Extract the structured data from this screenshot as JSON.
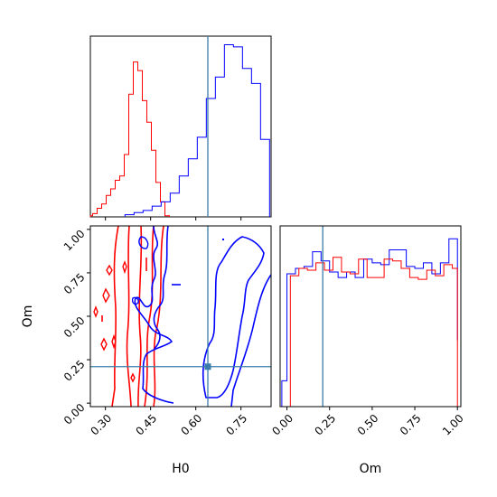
{
  "chart_data": [
    {
      "panel": "hist-H0",
      "type": "step-histogram",
      "xlim": [
        0.25,
        0.85
      ],
      "truth": 0.64,
      "series": [
        {
          "color": "#ff0000",
          "bin_centers": [
            0.25,
            0.265,
            0.28,
            0.295,
            0.31,
            0.325,
            0.34,
            0.355,
            0.37,
            0.385,
            0.4,
            0.415,
            0.43,
            0.445,
            0.46,
            0.475,
            0.49,
            0.505
          ],
          "values": [
            0.5,
            1.5,
            4,
            6,
            10,
            13,
            17,
            19,
            29,
            57,
            72,
            68,
            54,
            44,
            31,
            16,
            7,
            0.5
          ]
        },
        {
          "color": "#0000ff",
          "bin_centers": [
            0.38,
            0.41,
            0.44,
            0.47,
            0.5,
            0.53,
            0.56,
            0.59,
            0.62,
            0.65,
            0.68,
            0.71,
            0.74,
            0.77,
            0.8,
            0.83
          ],
          "values": [
            1,
            2,
            3,
            5,
            7,
            11,
            19,
            27,
            37,
            55,
            65,
            80,
            79,
            69,
            62,
            36
          ]
        }
      ],
      "ticks": [
        0.3,
        0.45,
        0.6,
        0.75
      ]
    },
    {
      "panel": "contour-H0-Om",
      "type": "contour",
      "xlim": [
        0.25,
        0.85
      ],
      "ylim": [
        -0.02,
        1.02
      ],
      "truth": {
        "x": 0.64,
        "y": 0.21
      },
      "series": [
        {
          "color": "#ff0000",
          "name": ""
        },
        {
          "color": "#0000ff",
          "name": ""
        }
      ],
      "xlabel": "H0",
      "ylabel": "Om",
      "xticks": [
        "0.30",
        "0.45",
        "0.60",
        "0.75"
      ],
      "xtick_values": [
        0.3,
        0.45,
        0.6,
        0.75
      ],
      "yticks": [
        "0.00",
        "0.25",
        "0.50",
        "0.75",
        "1.00"
      ],
      "ytick_values": [
        0.0,
        0.25,
        0.5,
        0.75,
        1.0
      ]
    },
    {
      "panel": "hist-Om",
      "type": "step-histogram",
      "xlim": [
        -0.04,
        1.02
      ],
      "truth": 0.21,
      "series": [
        {
          "color": "#0000ff",
          "bin_edges": [
            -0.03,
            0.0,
            0.05,
            0.1,
            0.15,
            0.2,
            0.25,
            0.3,
            0.35,
            0.4,
            0.45,
            0.5,
            0.55,
            0.6,
            0.65,
            0.7,
            0.75,
            0.8,
            0.85,
            0.9,
            0.95,
            1.0
          ],
          "values": [
            14,
            72,
            75,
            76,
            84,
            79,
            73,
            70,
            73,
            70,
            80,
            78,
            77,
            85,
            85,
            76,
            75,
            78,
            72,
            78,
            91,
            36
          ]
        },
        {
          "color": "#ff0000",
          "bin_edges": [
            0.0,
            0.02,
            0.07,
            0.12,
            0.17,
            0.22,
            0.27,
            0.32,
            0.37,
            0.42,
            0.47,
            0.52,
            0.57,
            0.62,
            0.67,
            0.72,
            0.77,
            0.82,
            0.87,
            0.92,
            0.97,
            1.0
          ],
          "values": [
            0,
            71,
            75,
            74,
            78,
            74,
            81,
            73,
            72,
            80,
            70,
            70,
            80,
            79,
            75,
            70,
            69,
            74,
            71,
            77,
            75,
            0
          ]
        }
      ],
      "xlabel": "Om",
      "xticks": [
        "0.00",
        "0.25",
        "0.50",
        "0.75",
        "1.00"
      ],
      "xtick_values": [
        0.0,
        0.25,
        0.5,
        0.75,
        1.0
      ]
    }
  ],
  "colors": {
    "truth_line": "#3a7dab",
    "red_series": "#ff0000",
    "blue_series": "#0000ff"
  }
}
